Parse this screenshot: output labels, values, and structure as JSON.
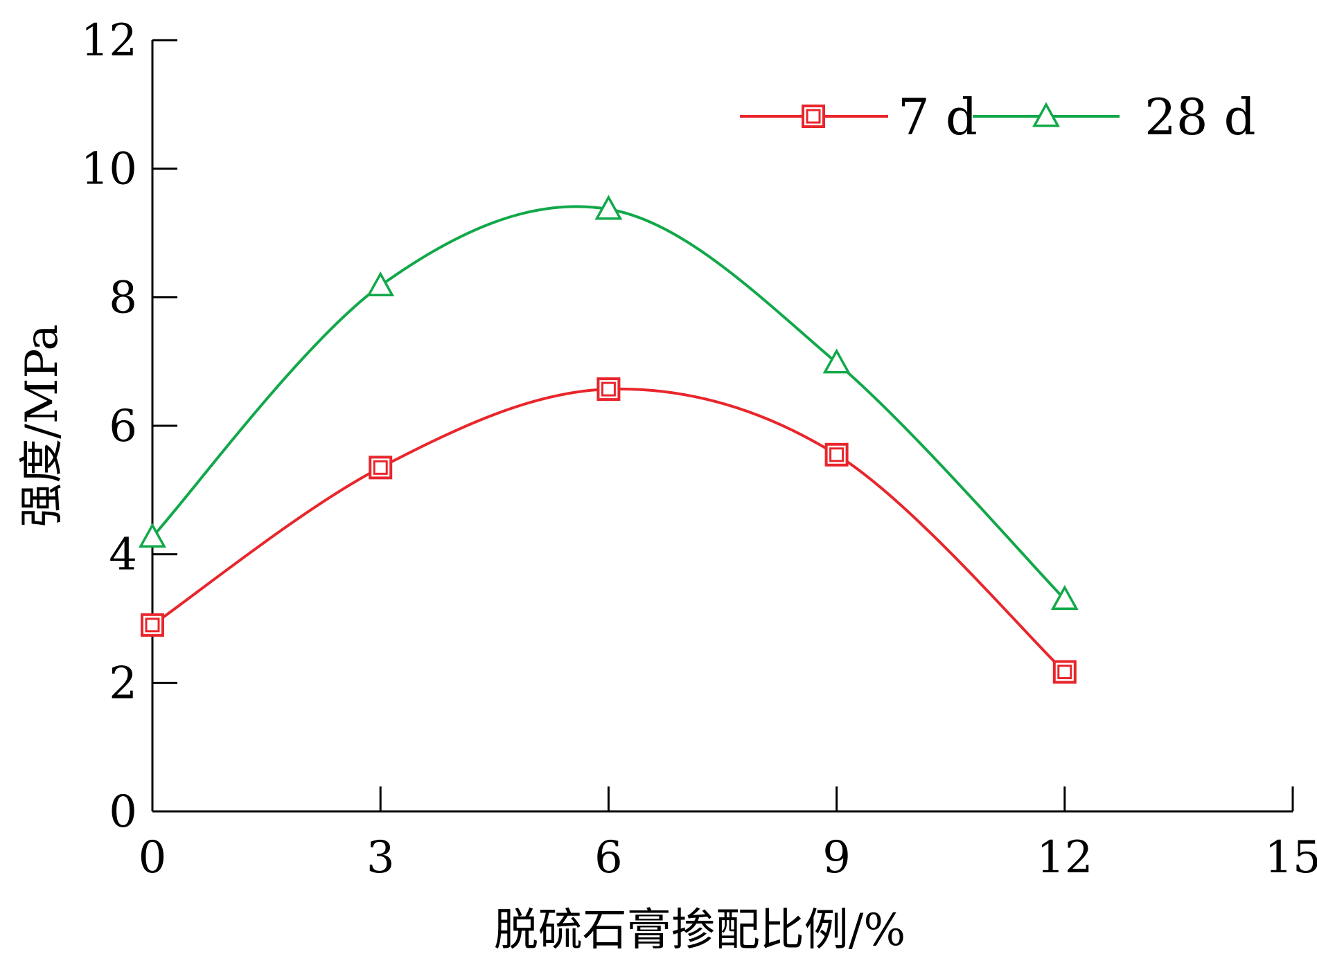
{
  "chart_data": {
    "type": "line",
    "xlabel": "脱硫石膏掺配比例/%",
    "ylabel": "强度/MPa",
    "xlim": [
      0,
      15
    ],
    "ylim": [
      0,
      12
    ],
    "xticks": [
      0,
      3,
      6,
      9,
      12,
      15
    ],
    "yticks": [
      0,
      2,
      4,
      6,
      8,
      10,
      12
    ],
    "grid": false,
    "legend_position": "top-right",
    "x": [
      0,
      3,
      6,
      9,
      12
    ],
    "series": [
      {
        "name": "7 d",
        "values": [
          2.9,
          5.35,
          6.57,
          5.55,
          2.17
        ],
        "color": "#e8262c",
        "marker": "square"
      },
      {
        "name": "28 d",
        "values": [
          4.27,
          8.18,
          9.37,
          6.98,
          3.3
        ],
        "color": "#12a84a",
        "marker": "triangle"
      }
    ]
  }
}
